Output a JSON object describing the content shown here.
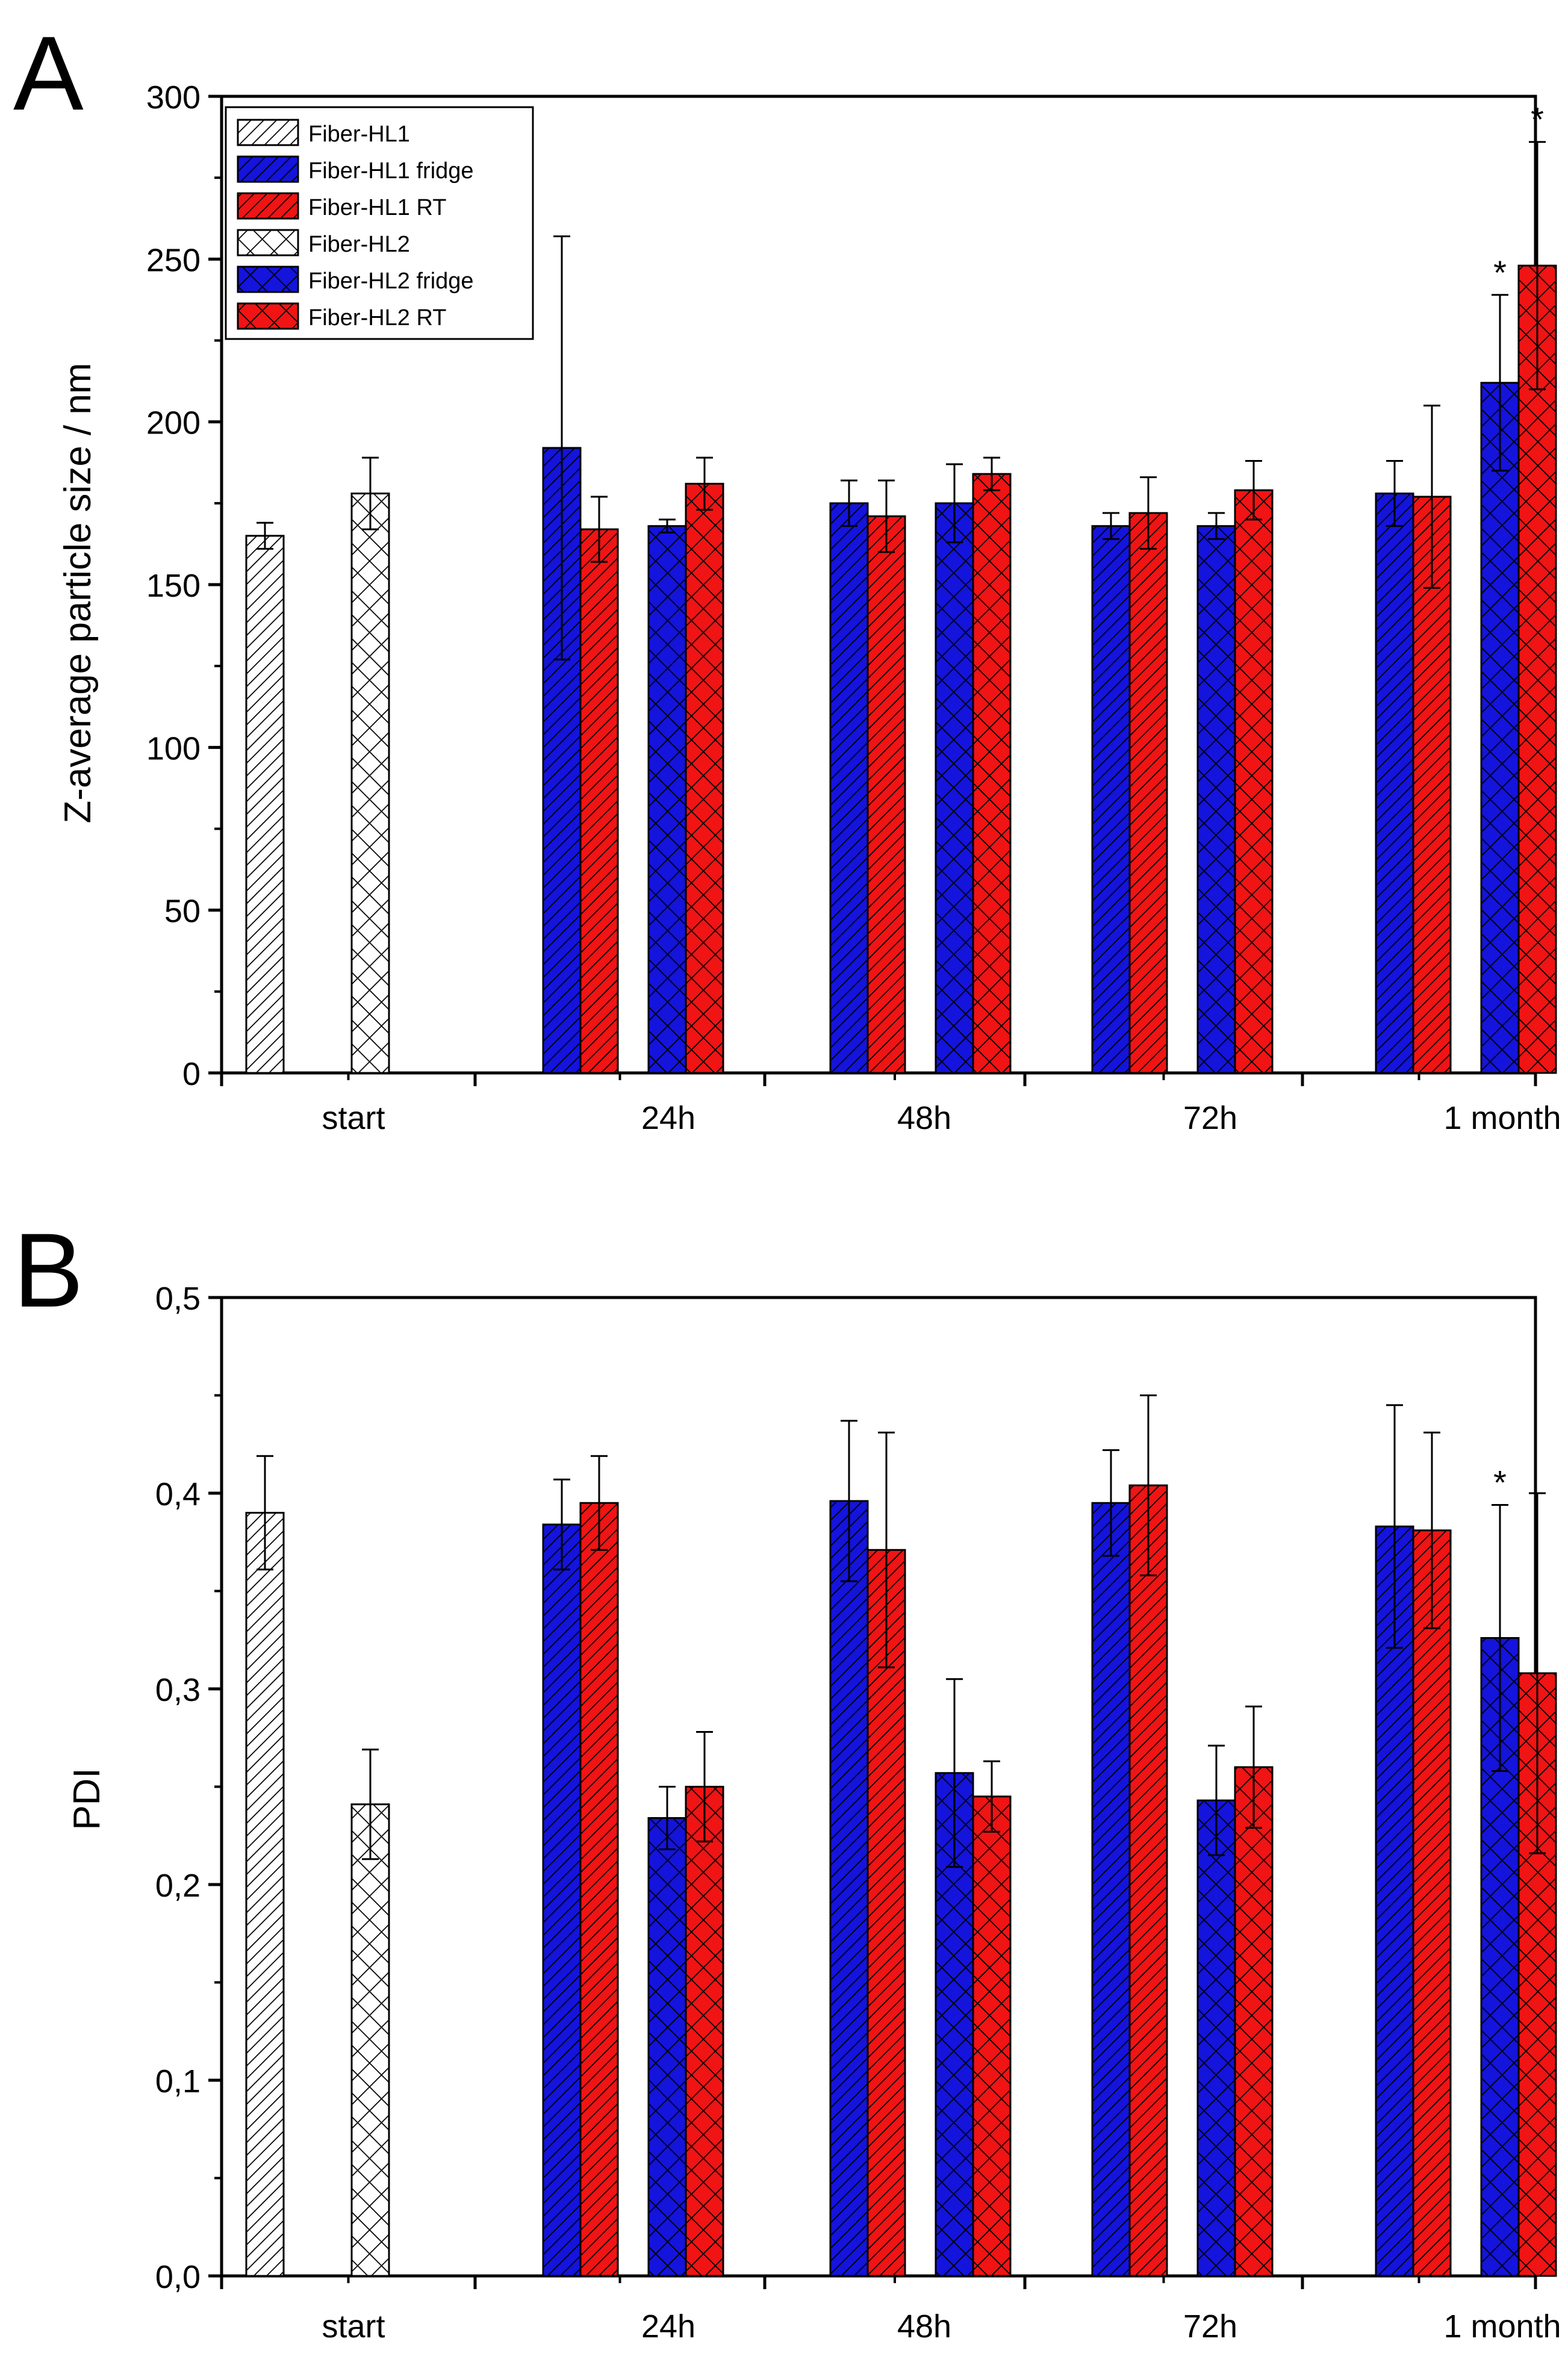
{
  "colors": {
    "fridge": "#1414dc",
    "rt": "#f01414",
    "start": "#ffffff",
    "ink": "#000000"
  },
  "legend": {
    "items": [
      {
        "label": "Fiber-HL1",
        "group": "start",
        "pattern": "hatch"
      },
      {
        "label": "Fiber-HL1 fridge",
        "group": "fridge",
        "pattern": "hatch"
      },
      {
        "label": "Fiber-HL1 RT",
        "group": "rt",
        "pattern": "hatch"
      },
      {
        "label": "Fiber-HL2",
        "group": "start",
        "pattern": "cross"
      },
      {
        "label": "Fiber-HL2 fridge",
        "group": "fridge",
        "pattern": "cross"
      },
      {
        "label": "Fiber-HL2 RT",
        "group": "rt",
        "pattern": "cross"
      }
    ]
  },
  "chart_data": [
    {
      "type": "bar",
      "panel_label": "A",
      "title": "",
      "xlabel": "",
      "ylabel": "Z-average particle size / nm",
      "ylim": [
        0,
        300
      ],
      "yticks": [
        "0",
        "50",
        "100",
        "150",
        "200",
        "250",
        "300"
      ],
      "categories": [
        "start",
        "24h",
        "48h",
        "72h",
        "1 month"
      ],
      "bars": [
        {
          "category": "start",
          "series": "Fiber-HL1",
          "value": 165,
          "error": 4
        },
        {
          "category": "start",
          "series": "Fiber-HL2",
          "value": 178,
          "error": 11
        },
        {
          "category": "24h",
          "series": "Fiber-HL1 fridge",
          "value": 192,
          "error": 65
        },
        {
          "category": "24h",
          "series": "Fiber-HL1 RT",
          "value": 167,
          "error": 10
        },
        {
          "category": "24h",
          "series": "Fiber-HL2 fridge",
          "value": 168,
          "error": 2
        },
        {
          "category": "24h",
          "series": "Fiber-HL2 RT",
          "value": 181,
          "error": 8
        },
        {
          "category": "48h",
          "series": "Fiber-HL1 fridge",
          "value": 175,
          "error": 7
        },
        {
          "category": "48h",
          "series": "Fiber-HL1 RT",
          "value": 171,
          "error": 11
        },
        {
          "category": "48h",
          "series": "Fiber-HL2 fridge",
          "value": 175,
          "error": 12
        },
        {
          "category": "48h",
          "series": "Fiber-HL2 RT",
          "value": 184,
          "error": 5
        },
        {
          "category": "72h",
          "series": "Fiber-HL1 fridge",
          "value": 168,
          "error": 4
        },
        {
          "category": "72h",
          "series": "Fiber-HL1 RT",
          "value": 172,
          "error": 11
        },
        {
          "category": "72h",
          "series": "Fiber-HL2 fridge",
          "value": 168,
          "error": 4
        },
        {
          "category": "72h",
          "series": "Fiber-HL2 RT",
          "value": 179,
          "error": 9
        },
        {
          "category": "1 month",
          "series": "Fiber-HL1 fridge",
          "value": 178,
          "error": 10
        },
        {
          "category": "1 month",
          "series": "Fiber-HL1 RT",
          "value": 177,
          "error": 28
        },
        {
          "category": "1 month",
          "series": "Fiber-HL2 fridge",
          "value": 212,
          "error": 27,
          "annotation": "*"
        },
        {
          "category": "1 month",
          "series": "Fiber-HL2 RT",
          "value": 248,
          "error": 38,
          "annotation": "*"
        }
      ]
    },
    {
      "type": "bar",
      "panel_label": "B",
      "title": "",
      "xlabel": "",
      "ylabel": "PDI",
      "ylim": [
        0,
        0.5
      ],
      "yticks": [
        "0,0",
        "0,1",
        "0,2",
        "0,3",
        "0,4",
        "0,5"
      ],
      "categories": [
        "start",
        "24h",
        "48h",
        "72h",
        "1 month"
      ],
      "bars": [
        {
          "category": "start",
          "series": "Fiber-HL1",
          "value": 0.39,
          "error": 0.029
        },
        {
          "category": "start",
          "series": "Fiber-HL2",
          "value": 0.241,
          "error": 0.028
        },
        {
          "category": "24h",
          "series": "Fiber-HL1 fridge",
          "value": 0.384,
          "error": 0.023
        },
        {
          "category": "24h",
          "series": "Fiber-HL1 RT",
          "value": 0.395,
          "error": 0.024
        },
        {
          "category": "24h",
          "series": "Fiber-HL2 fridge",
          "value": 0.234,
          "error": 0.016
        },
        {
          "category": "24h",
          "series": "Fiber-HL2 RT",
          "value": 0.25,
          "error": 0.028
        },
        {
          "category": "48h",
          "series": "Fiber-HL1 fridge",
          "value": 0.396,
          "error": 0.041
        },
        {
          "category": "48h",
          "series": "Fiber-HL1 RT",
          "value": 0.371,
          "error": 0.06
        },
        {
          "category": "48h",
          "series": "Fiber-HL2 fridge",
          "value": 0.257,
          "error": 0.048
        },
        {
          "category": "48h",
          "series": "Fiber-HL2 RT",
          "value": 0.245,
          "error": 0.018
        },
        {
          "category": "72h",
          "series": "Fiber-HL1 fridge",
          "value": 0.395,
          "error": 0.027
        },
        {
          "category": "72h",
          "series": "Fiber-HL1 RT",
          "value": 0.404,
          "error": 0.046
        },
        {
          "category": "72h",
          "series": "Fiber-HL2 fridge",
          "value": 0.243,
          "error": 0.028
        },
        {
          "category": "72h",
          "series": "Fiber-HL2 RT",
          "value": 0.26,
          "error": 0.031
        },
        {
          "category": "1 month",
          "series": "Fiber-HL1 fridge",
          "value": 0.383,
          "error": 0.062
        },
        {
          "category": "1 month",
          "series": "Fiber-HL1 RT",
          "value": 0.381,
          "error": 0.05
        },
        {
          "category": "1 month",
          "series": "Fiber-HL2 fridge",
          "value": 0.326,
          "error": 0.068,
          "annotation": "*"
        },
        {
          "category": "1 month",
          "series": "Fiber-HL2 RT",
          "value": 0.308,
          "error": 0.092
        }
      ]
    }
  ]
}
